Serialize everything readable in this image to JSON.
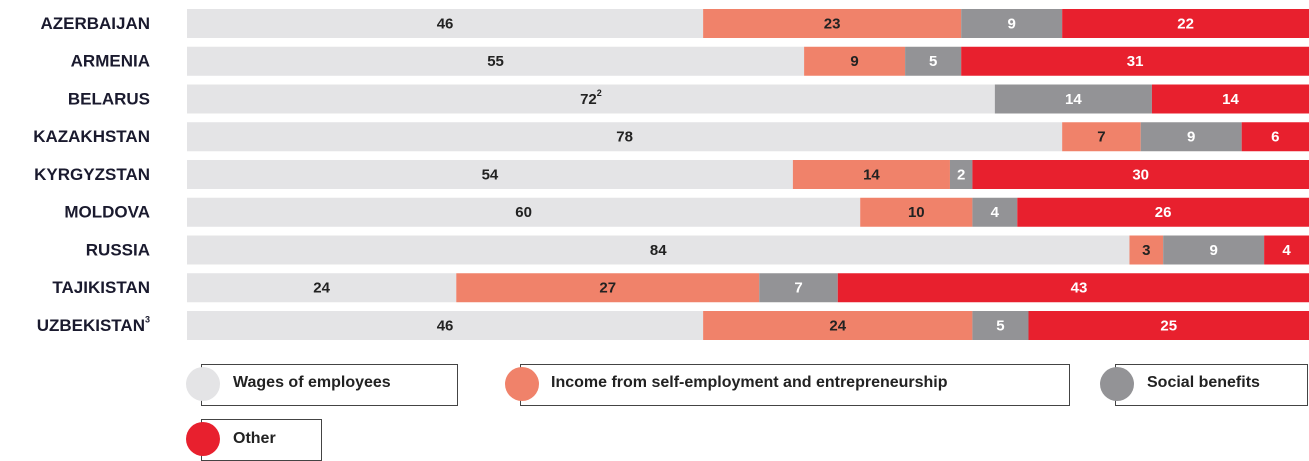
{
  "chart_data": {
    "type": "bar",
    "orientation": "horizontal",
    "stacked": true,
    "categories": [
      "AZERBAIJAN",
      "ARMENIA",
      "BELARUS",
      "KAZAKHSTAN",
      "KYRGYZSTAN",
      "MOLDOVA",
      "RUSSIA",
      "TAJIKISTAN",
      "UZBEKISTAN"
    ],
    "category_superscripts": [
      "",
      "",
      "",
      "",
      "",
      "",
      "",
      "",
      "3"
    ],
    "label_superscripts": {
      "BELARUS": {
        "series": 0,
        "sup": "2"
      }
    },
    "series": [
      {
        "name": "Wages of employees",
        "color": "#e4e4e6",
        "text_color": "#222222",
        "values": [
          46,
          55,
          72,
          78,
          54,
          60,
          84,
          24,
          46
        ]
      },
      {
        "name": "Income from self-employment and entrepreneurship",
        "color": "#f0826a",
        "text_color": "#222222",
        "values": [
          23,
          9,
          0,
          7,
          14,
          10,
          3,
          27,
          24
        ]
      },
      {
        "name": "Social benefits",
        "color": "#939396",
        "text_color": "#ffffff",
        "values": [
          9,
          5,
          14,
          9,
          2,
          4,
          9,
          7,
          5
        ]
      },
      {
        "name": "Other",
        "color": "#e8202e",
        "text_color": "#ffffff",
        "values": [
          22,
          31,
          14,
          6,
          30,
          26,
          4,
          43,
          25
        ]
      }
    ],
    "xlim": [
      0,
      100
    ],
    "legend_position": "bottom"
  },
  "legend": {
    "items": [
      {
        "label": "Wages of employees",
        "color": "#e4e4e6"
      },
      {
        "label": "Income from self-employment and entrepreneurship",
        "color": "#f0826a"
      },
      {
        "label": "Social benefits",
        "color": "#939396"
      },
      {
        "label": "Other",
        "color": "#e8202e"
      }
    ]
  }
}
